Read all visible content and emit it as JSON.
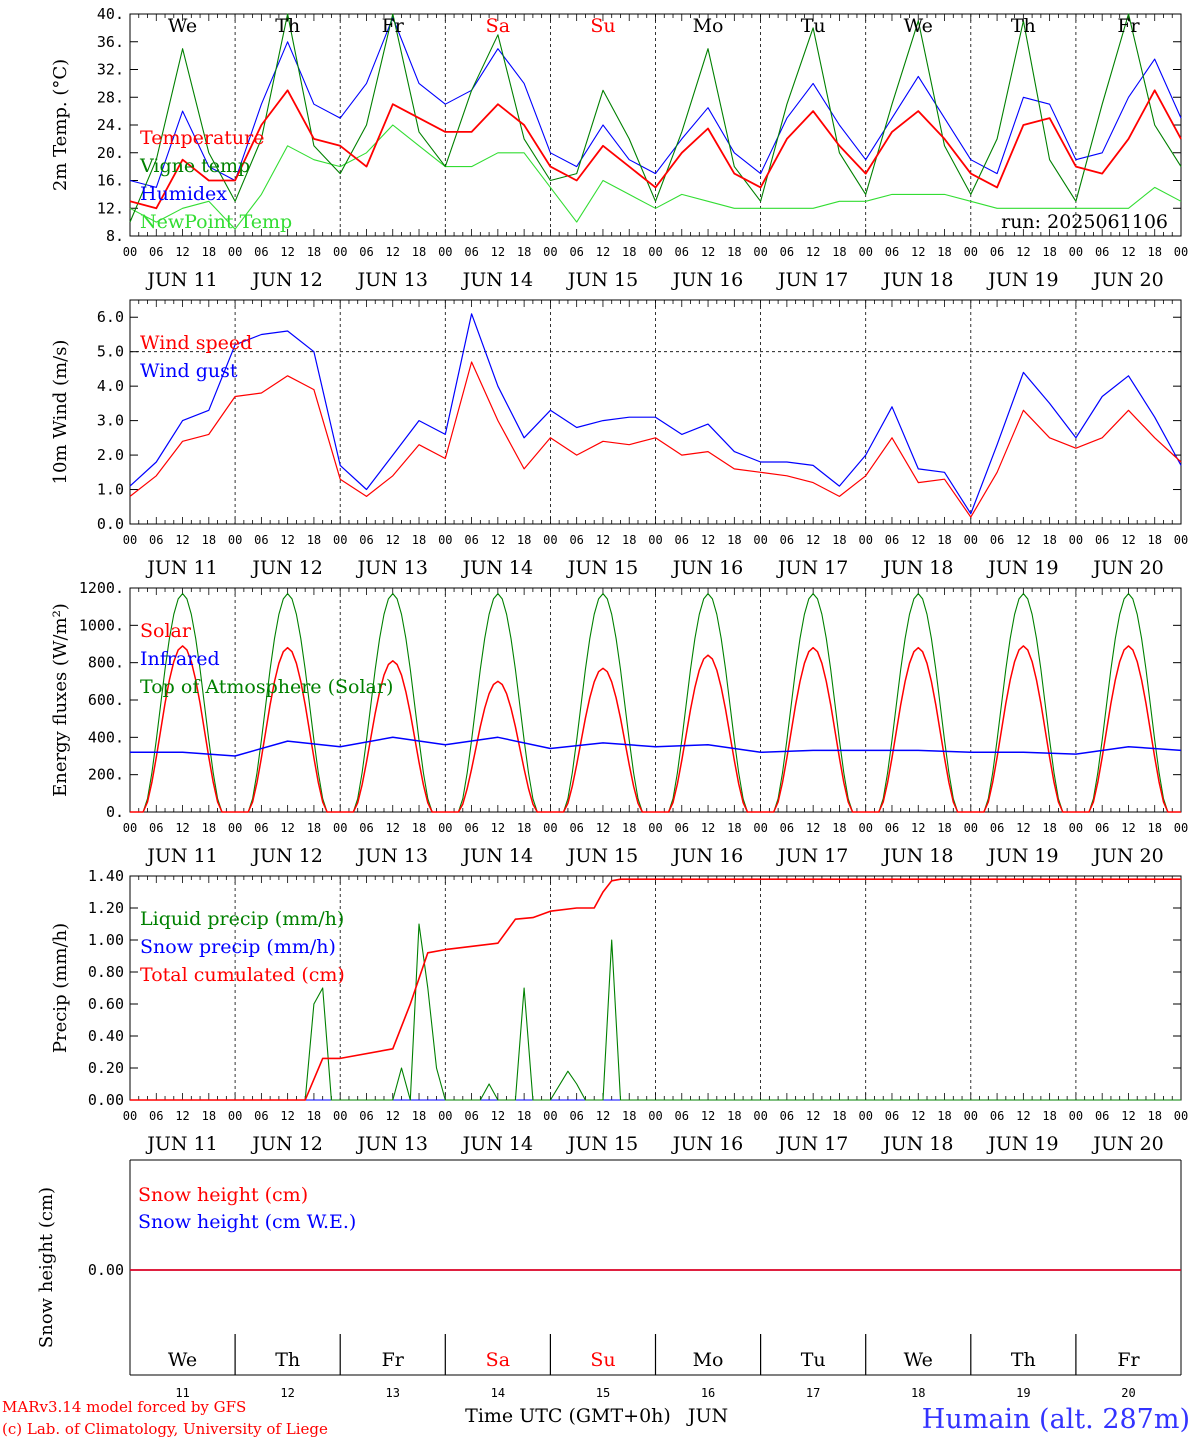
{
  "axis_common": {
    "hour_labels": [
      "00",
      "06",
      "12",
      "18"
    ],
    "end_hour_label": "00",
    "date_labels": [
      "JUN 11",
      "JUN 12",
      "JUN 13",
      "JUN 14",
      "JUN 15",
      "JUN 16",
      "JUN 17",
      "JUN 18",
      "JUN 19",
      "JUN 20"
    ],
    "day_names": [
      "We",
      "Th",
      "Fr",
      "Sa",
      "Su",
      "Mo",
      "Tu",
      "We",
      "Th",
      "Fr"
    ],
    "weekend_days": [
      3,
      4
    ],
    "day_numbers": [
      "11",
      "12",
      "13",
      "14",
      "15",
      "16",
      "17",
      "18",
      "19",
      "20"
    ],
    "days": 10
  },
  "colors": {
    "red": "#ff0000",
    "green": "#008000",
    "blue": "#0000ff",
    "lightgreen": "#33dd33",
    "weekend": "#ff0000"
  },
  "run_label": "run: 2025061106",
  "bottom": {
    "xlabel": "Time UTC (GMT+0h)",
    "month": "JUN"
  },
  "footer": {
    "line1": "MARv3.14 model forced by GFS",
    "line2": "(c) Lab. of Climatology, University of Liege",
    "station": "Humain (alt. 287m)"
  },
  "chart_data": [
    {
      "id": "temperature",
      "type": "line",
      "ylabel": "2m Temp. (°C)",
      "ylim": [
        8,
        40
      ],
      "yticks": [
        "8.",
        "12.",
        "16.",
        "20.",
        "24.",
        "28.",
        "32.",
        "36.",
        "40."
      ],
      "grid": "vertical-dashed-daily",
      "legend_placement": "left",
      "series": [
        {
          "name": "Temperature",
          "color": "#ff0000",
          "x": [
            0,
            6,
            12,
            18,
            24,
            30,
            36,
            42,
            48,
            54,
            60,
            66,
            72,
            78,
            84,
            90,
            96,
            102,
            108,
            114,
            120,
            126,
            132,
            138,
            144,
            150,
            156,
            162,
            168,
            174,
            180,
            186,
            192,
            198,
            204,
            210,
            216,
            222,
            228,
            234,
            240
          ],
          "values": [
            13,
            12,
            19,
            16,
            16,
            24,
            29,
            22,
            21,
            18,
            27,
            25,
            23,
            23,
            27,
            24,
            18,
            16,
            21,
            18,
            15,
            20,
            23.5,
            17,
            15,
            22,
            26,
            21,
            17,
            23,
            26,
            22,
            17,
            15,
            24,
            25,
            18,
            17,
            22,
            29,
            22
          ]
        },
        {
          "name": "Vigne temp",
          "color": "#008000",
          "x": [
            0,
            6,
            12,
            18,
            24,
            30,
            36,
            42,
            48,
            54,
            60,
            66,
            72,
            78,
            84,
            90,
            96,
            102,
            108,
            114,
            120,
            126,
            132,
            138,
            144,
            150,
            156,
            162,
            168,
            174,
            180,
            186,
            192,
            198,
            204,
            210,
            216,
            222,
            228,
            234,
            240
          ],
          "values": [
            10,
            19,
            35,
            20,
            13,
            22,
            40,
            21,
            17,
            24,
            40,
            23,
            18,
            29,
            37,
            22,
            16,
            17,
            29,
            22,
            13,
            23,
            35,
            18,
            13,
            27,
            38,
            20,
            14,
            27,
            39,
            21,
            14,
            22,
            39,
            19,
            13,
            27,
            40,
            24,
            18
          ]
        },
        {
          "name": "Humidex",
          "color": "#0000ff",
          "x": [
            0,
            6,
            12,
            18,
            24,
            30,
            36,
            42,
            48,
            54,
            60,
            66,
            72,
            78,
            84,
            90,
            96,
            102,
            108,
            114,
            120,
            126,
            132,
            138,
            144,
            150,
            156,
            162,
            168,
            174,
            180,
            186,
            192,
            198,
            204,
            210,
            216,
            222,
            228,
            234,
            240
          ],
          "values": [
            16,
            15,
            26,
            18,
            16,
            27,
            36,
            27,
            25,
            30,
            39.5,
            30,
            27,
            29,
            35,
            30,
            20,
            18,
            24,
            19,
            17,
            22,
            26.5,
            20,
            17,
            25,
            30,
            24,
            19,
            25,
            31,
            25,
            19,
            17,
            28,
            27,
            19,
            20,
            28,
            33.5,
            25
          ]
        },
        {
          "name": "NewPoint Temp",
          "color": "#33dd33",
          "x": [
            0,
            6,
            12,
            18,
            24,
            30,
            36,
            42,
            48,
            54,
            60,
            66,
            72,
            78,
            84,
            90,
            96,
            102,
            108,
            114,
            120,
            126,
            132,
            138,
            144,
            150,
            156,
            162,
            168,
            174,
            180,
            186,
            192,
            198,
            204,
            210,
            216,
            222,
            228,
            234,
            240
          ],
          "values": [
            12,
            10,
            12,
            13,
            9,
            14,
            21,
            19,
            18,
            20,
            24,
            21,
            18,
            18,
            20,
            20,
            15,
            10,
            16,
            14,
            12,
            14,
            13,
            12,
            12,
            12,
            12,
            13,
            13,
            14,
            14,
            14,
            13,
            12,
            12,
            12,
            12,
            12,
            12,
            15,
            13
          ]
        }
      ]
    },
    {
      "id": "wind",
      "type": "line",
      "ylabel": "10m Wind (m/s)",
      "ylim": [
        0,
        6.5
      ],
      "yticks": [
        "0.0",
        "1.0",
        "2.0",
        "3.0",
        "4.0",
        "5.0",
        "6.0"
      ],
      "reference_line": 5.0,
      "legend_placement": "left",
      "series": [
        {
          "name": "Wind speed",
          "color": "#ff0000",
          "x": [
            0,
            6,
            12,
            18,
            24,
            30,
            36,
            42,
            48,
            54,
            60,
            66,
            72,
            78,
            84,
            90,
            96,
            102,
            108,
            114,
            120,
            126,
            132,
            138,
            144,
            150,
            156,
            162,
            168,
            174,
            180,
            186,
            192,
            198,
            204,
            210,
            216,
            222,
            228,
            234,
            240
          ],
          "values": [
            0.8,
            1.4,
            2.4,
            2.6,
            3.7,
            3.8,
            4.3,
            3.9,
            1.3,
            0.8,
            1.4,
            2.3,
            1.9,
            4.7,
            3.0,
            1.6,
            2.5,
            2.0,
            2.4,
            2.3,
            2.5,
            2.0,
            2.1,
            1.6,
            1.5,
            1.4,
            1.2,
            0.8,
            1.4,
            2.5,
            1.2,
            1.3,
            0.2,
            1.5,
            3.3,
            2.5,
            2.2,
            2.5,
            3.3,
            2.5,
            1.8
          ]
        },
        {
          "name": "Wind gust",
          "color": "#0000ff",
          "x": [
            0,
            6,
            12,
            18,
            24,
            30,
            36,
            42,
            48,
            54,
            60,
            66,
            72,
            78,
            84,
            90,
            96,
            102,
            108,
            114,
            120,
            126,
            132,
            138,
            144,
            150,
            156,
            162,
            168,
            174,
            180,
            186,
            192,
            198,
            204,
            210,
            216,
            222,
            228,
            234,
            240
          ],
          "values": [
            1.1,
            1.8,
            3.0,
            3.3,
            5.2,
            5.5,
            5.6,
            5.0,
            1.7,
            1.0,
            2.0,
            3.0,
            2.6,
            6.1,
            4.0,
            2.5,
            3.3,
            2.8,
            3.0,
            3.1,
            3.1,
            2.6,
            2.9,
            2.1,
            1.8,
            1.8,
            1.7,
            1.1,
            2.0,
            3.4,
            1.6,
            1.5,
            0.3,
            2.3,
            4.4,
            3.5,
            2.5,
            3.7,
            4.3,
            3.1,
            1.7
          ]
        }
      ]
    },
    {
      "id": "energy",
      "type": "line",
      "ylabel": "Energy fluxes (W/m²)",
      "ylim": [
        0,
        1200
      ],
      "yticks": [
        "0.",
        "200.",
        "400.",
        "600.",
        "800.",
        "1000.",
        "1200."
      ],
      "legend_placement": "left",
      "series": [
        {
          "name": "Solar",
          "color": "#ff0000",
          "daily_peak": [
            890,
            880,
            810,
            700,
            770,
            840,
            880,
            880,
            890,
            890
          ]
        },
        {
          "name": "Infrared",
          "color": "#0000ff",
          "x": [
            0,
            12,
            24,
            36,
            48,
            60,
            72,
            84,
            96,
            108,
            120,
            132,
            144,
            156,
            168,
            180,
            192,
            204,
            216,
            228,
            240
          ],
          "values": [
            320,
            320,
            300,
            380,
            350,
            400,
            360,
            400,
            340,
            370,
            350,
            360,
            320,
            330,
            330,
            330,
            320,
            320,
            310,
            350,
            330
          ]
        },
        {
          "name": "Top of Atmosphere (Solar)",
          "color": "#008000",
          "daily_peak": [
            1170,
            1170,
            1170,
            1170,
            1170,
            1170,
            1170,
            1170,
            1170,
            1170
          ]
        }
      ]
    },
    {
      "id": "precip",
      "type": "line",
      "ylabel": "Precip (mm/h)",
      "ylim": [
        0,
        1.4
      ],
      "yticks": [
        "0.00",
        "0.20",
        "0.40",
        "0.60",
        "0.80",
        "1.00",
        "1.20",
        "1.40"
      ],
      "legend_placement": "left",
      "series": [
        {
          "name": "Liquid precip (mm/h)",
          "color": "#008000",
          "x": [
            0,
            40,
            42,
            44,
            46,
            48,
            60,
            62,
            64,
            66,
            68,
            70,
            72,
            80,
            82,
            84,
            88,
            90,
            92,
            94,
            96,
            100,
            102,
            104,
            108,
            110,
            112,
            114,
            116,
            240
          ],
          "values": [
            0,
            0,
            0.6,
            0.7,
            0,
            0,
            0,
            0.2,
            0,
            1.1,
            0.7,
            0.2,
            0,
            0,
            0.1,
            0,
            0,
            0.7,
            0,
            0,
            0,
            0.18,
            0.1,
            0,
            0,
            1.0,
            0,
            0,
            0,
            0
          ]
        },
        {
          "name": "Snow precip (mm/h)",
          "color": "#0000ff",
          "x": [
            0,
            240
          ],
          "values": [
            0,
            0
          ]
        },
        {
          "name": "Total cumulated (cm)",
          "color": "#ff0000",
          "x": [
            0,
            40,
            44,
            48,
            60,
            64,
            68,
            72,
            84,
            88,
            92,
            96,
            102,
            106,
            108,
            110,
            112,
            114,
            240
          ],
          "values": [
            0,
            0,
            0.26,
            0.26,
            0.32,
            0.6,
            0.92,
            0.94,
            0.98,
            1.13,
            1.14,
            1.18,
            1.2,
            1.2,
            1.3,
            1.37,
            1.38,
            1.38,
            1.38
          ]
        }
      ]
    },
    {
      "id": "snow",
      "type": "line",
      "ylabel": "Snow height (cm)",
      "yticks": [
        "0.00"
      ],
      "legend_placement": "left",
      "series": [
        {
          "name": "Snow height (cm)",
          "color": "#ff0000",
          "x": [
            0,
            240
          ],
          "values": [
            0,
            0
          ]
        },
        {
          "name": "Snow height (cm W.E.)",
          "color": "#0000ff",
          "x": [
            0,
            240
          ],
          "values": [
            0,
            0
          ]
        }
      ]
    }
  ]
}
